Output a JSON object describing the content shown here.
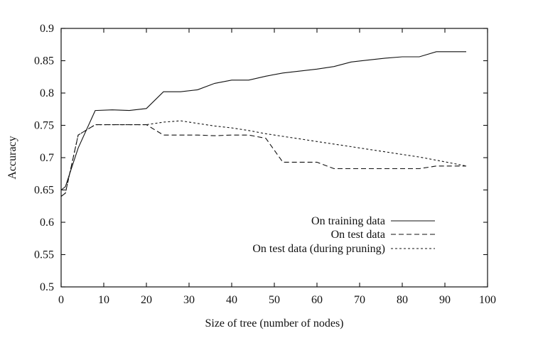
{
  "chart_data": {
    "type": "line",
    "xlabel": "Size of tree (number of nodes)",
    "ylabel": "Accuracy",
    "xlim": [
      0,
      100
    ],
    "ylim": [
      0.5,
      0.9
    ],
    "xticks": [
      0,
      10,
      20,
      30,
      40,
      50,
      60,
      70,
      80,
      90,
      100
    ],
    "yticks": [
      0.5,
      0.55,
      0.6,
      0.65,
      0.7,
      0.75,
      0.8,
      0.85,
      0.9
    ],
    "xtick_labels": [
      "0",
      "10",
      "20",
      "30",
      "40",
      "50",
      "60",
      "70",
      "80",
      "90",
      "100"
    ],
    "ytick_labels": [
      "0.5",
      "0.55",
      "0.6",
      "0.65",
      "0.7",
      "0.75",
      "0.8",
      "0.85",
      "0.9"
    ],
    "grid": false,
    "legend_position": "bottom-right",
    "series": [
      {
        "name": "On training data",
        "style": "solid",
        "x": [
          0,
          1,
          4,
          8,
          12,
          16,
          20,
          24,
          28,
          32,
          36,
          40,
          44,
          48,
          52,
          56,
          60,
          64,
          68,
          72,
          76,
          80,
          84,
          88,
          92,
          95
        ],
        "y": [
          0.65,
          0.655,
          0.715,
          0.773,
          0.774,
          0.773,
          0.776,
          0.802,
          0.802,
          0.805,
          0.815,
          0.82,
          0.82,
          0.826,
          0.831,
          0.834,
          0.837,
          0.841,
          0.848,
          0.851,
          0.854,
          0.856,
          0.856,
          0.864,
          0.864,
          0.864
        ]
      },
      {
        "name": "On test data",
        "style": "dashed",
        "x": [
          0,
          1,
          4,
          8,
          12,
          16,
          20,
          24,
          28,
          32,
          36,
          40,
          44,
          48,
          52,
          56,
          60,
          64,
          68,
          72,
          76,
          80,
          84,
          88,
          92,
          95
        ],
        "y": [
          0.64,
          0.645,
          0.735,
          0.751,
          0.751,
          0.751,
          0.751,
          0.735,
          0.735,
          0.735,
          0.734,
          0.735,
          0.735,
          0.73,
          0.693,
          0.693,
          0.693,
          0.683,
          0.683,
          0.683,
          0.683,
          0.683,
          0.683,
          0.687,
          0.687,
          0.687
        ]
      },
      {
        "name": "On test data (during pruning)",
        "style": "dotted",
        "x": [
          0,
          1,
          4,
          8,
          12,
          16,
          20,
          24,
          28,
          32,
          36,
          40,
          44,
          48,
          52,
          56,
          60,
          64,
          68,
          72,
          76,
          80,
          84,
          88,
          92,
          95
        ],
        "y": [
          0.64,
          0.645,
          0.735,
          0.751,
          0.751,
          0.751,
          0.751,
          0.755,
          0.757,
          0.753,
          0.749,
          0.746,
          0.742,
          0.737,
          0.733,
          0.729,
          0.725,
          0.721,
          0.717,
          0.713,
          0.709,
          0.705,
          0.701,
          0.696,
          0.691,
          0.687
        ]
      }
    ]
  }
}
